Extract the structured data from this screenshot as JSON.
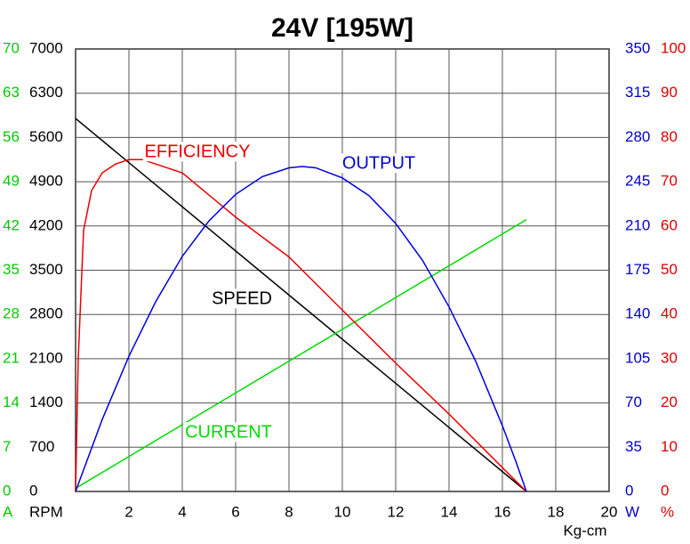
{
  "chart_data": {
    "type": "line",
    "title": "24V [195W]",
    "x_label": "Kg-cm",
    "xlim": [
      0,
      20
    ],
    "xticks": [
      2,
      4,
      6,
      8,
      10,
      12,
      14,
      16,
      18,
      20
    ],
    "grid": true,
    "axes": [
      {
        "label": "A",
        "color": "#00cc00",
        "side": "left",
        "lim": [
          0,
          70
        ],
        "ticks": [
          0,
          7,
          14,
          21,
          28,
          35,
          42,
          49,
          56,
          63,
          70
        ]
      },
      {
        "label": "RPM",
        "color": "#000000",
        "side": "left",
        "lim": [
          0,
          7000
        ],
        "ticks": [
          0,
          700,
          1400,
          2100,
          2800,
          3500,
          4200,
          4900,
          5600,
          6300,
          7000
        ]
      },
      {
        "label": "W",
        "color": "#0000cc",
        "side": "right",
        "lim": [
          0,
          350
        ],
        "ticks": [
          0,
          35,
          70,
          105,
          140,
          175,
          210,
          245,
          280,
          315,
          350
        ]
      },
      {
        "label": "%",
        "color": "#dd0000",
        "side": "right",
        "lim": [
          0,
          100
        ],
        "ticks": [
          0,
          10,
          20,
          30,
          40,
          50,
          60,
          70,
          80,
          90,
          100
        ]
      }
    ],
    "series": [
      {
        "name": "SPEED",
        "color": "#000000",
        "axis": 1,
        "x": [
          0,
          16.9
        ],
        "values": [
          5900,
          0
        ]
      },
      {
        "name": "CURRENT",
        "color": "#00dd00",
        "axis": 0,
        "x": [
          0,
          16.9
        ],
        "values": [
          0.5,
          43
        ]
      },
      {
        "name": "EFFICIENCY",
        "color": "#ee0000",
        "axis": 3,
        "x": [
          0,
          0.1,
          0.3,
          0.6,
          1,
          1.5,
          2,
          2.5,
          3,
          4,
          6,
          8,
          10,
          12,
          14,
          16,
          16.9
        ],
        "values": [
          0,
          30,
          59,
          68,
          72,
          74,
          75,
          75,
          74,
          72,
          62,
          53,
          41,
          29,
          17.5,
          5.4,
          0
        ]
      },
      {
        "name": "OUTPUT",
        "color": "#0000dd",
        "axis": 2,
        "x": [
          0,
          1,
          2,
          3,
          4,
          5,
          6,
          7,
          8,
          8.5,
          9,
          10,
          11,
          12,
          13,
          14,
          15,
          16,
          16.5,
          16.9
        ],
        "values": [
          0,
          57,
          107,
          150,
          186,
          214,
          235,
          249,
          256,
          257,
          256,
          248,
          234,
          212,
          183,
          146,
          103,
          52,
          24,
          0
        ]
      }
    ]
  }
}
